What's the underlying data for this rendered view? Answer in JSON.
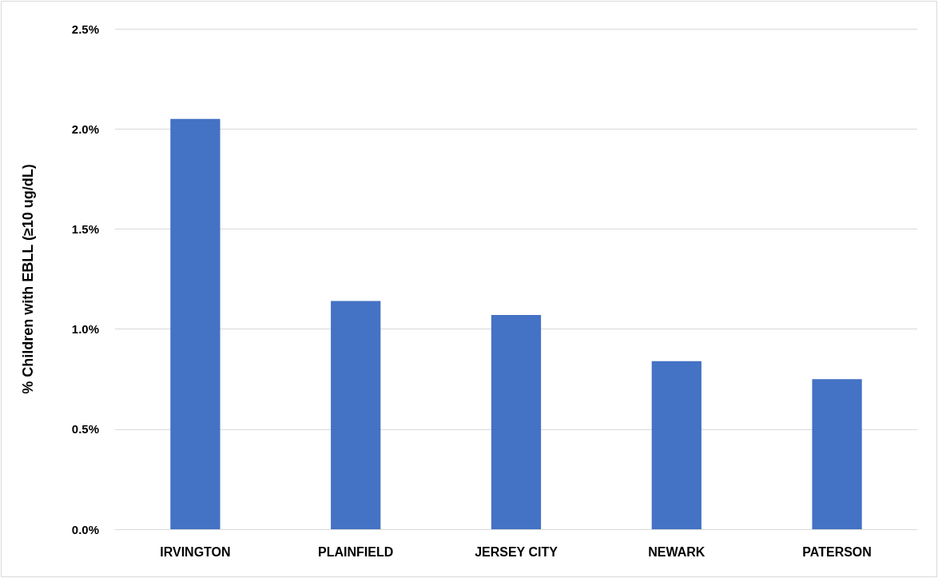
{
  "chart_data": {
    "type": "bar",
    "ylabel": "% Children with EBLL (≥10 ug/dL)",
    "categories": [
      "IRVINGTON",
      "PLAINFIELD",
      "JERSEY CITY",
      "NEWARK",
      "PATERSON"
    ],
    "values": [
      2.05,
      1.14,
      1.07,
      0.84,
      0.75
    ],
    "color": "#4472c4",
    "ylim": [
      0,
      2.5
    ],
    "yticks": [
      {
        "value": 0,
        "label": "0.0%"
      },
      {
        "value": 0.5,
        "label": "0.5%"
      },
      {
        "value": 1,
        "label": "1.0%"
      },
      {
        "value": 1.5,
        "label": "1.5%"
      },
      {
        "value": 2,
        "label": "2.0%"
      },
      {
        "value": 2.5,
        "label": "2.5%"
      }
    ],
    "grid": "y"
  }
}
